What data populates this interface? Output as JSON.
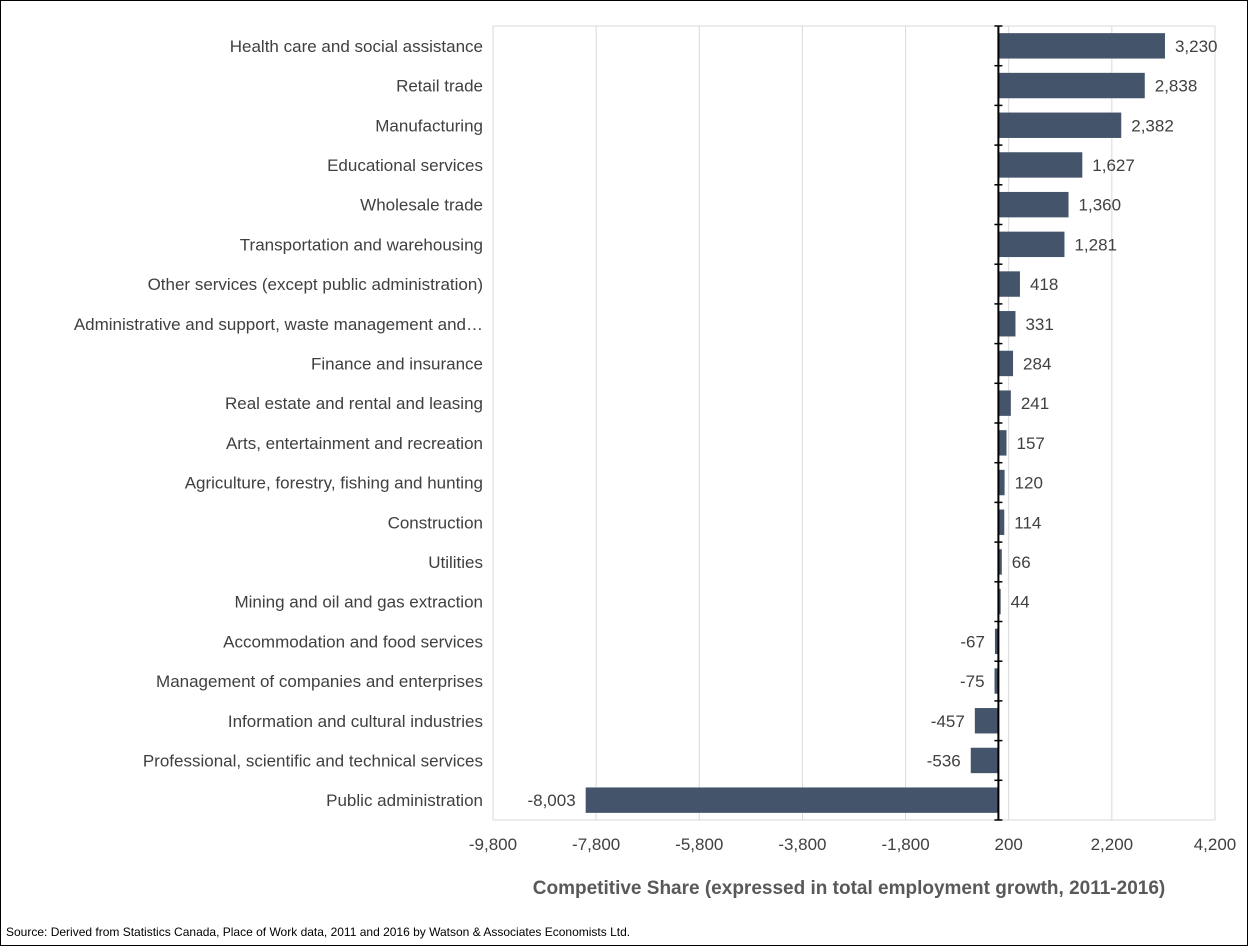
{
  "chart_data": {
    "type": "bar",
    "orientation": "horizontal",
    "categories": [
      "Health care and social assistance",
      "Retail trade",
      "Manufacturing",
      "Educational services",
      "Wholesale trade",
      "Transportation and warehousing",
      "Other services (except public administration)",
      "Administrative and support, waste management and…",
      "Finance and insurance",
      "Real estate and rental and leasing",
      "Arts, entertainment and recreation",
      "Agriculture, forestry, fishing and hunting",
      "Construction",
      "Utilities",
      "Mining and oil and gas extraction",
      "Accommodation and food services",
      "Management of companies and enterprises",
      "Information and cultural industries",
      "Professional, scientific and technical services",
      "Public administration"
    ],
    "values": [
      3230,
      2838,
      2382,
      1627,
      1360,
      1281,
      418,
      331,
      284,
      241,
      157,
      120,
      114,
      66,
      44,
      -67,
      -75,
      -457,
      -536,
      -8003
    ],
    "data_labels": [
      "3,230",
      "2,838",
      "2,382",
      "1,627",
      "1,360",
      "1,281",
      "418",
      "331",
      "284",
      "241",
      "157",
      "120",
      "114",
      "66",
      "44",
      "-67",
      "-75",
      "-457",
      "-536",
      "-8,003"
    ],
    "xlim": [
      -9800,
      4200
    ],
    "x_ticks": [
      -9800,
      -7800,
      -5800,
      -3800,
      -1800,
      200,
      2200,
      4200
    ],
    "x_tick_labels": [
      "-9,800",
      "-7,800",
      "-5,800",
      "-3,800",
      "-1,800",
      "200",
      "2,200",
      "4,200"
    ],
    "xlabel": "Competitive Share (expressed in total employment growth, 2011-2016)",
    "ylabel": "",
    "title": "",
    "grid": "vertical",
    "bar_color": "#44546a",
    "legend": "none"
  },
  "source_note": "Source:  Derived from Statistics Canada, Place of Work data, 2011 and 2016 by Watson & Associates Economists Ltd."
}
